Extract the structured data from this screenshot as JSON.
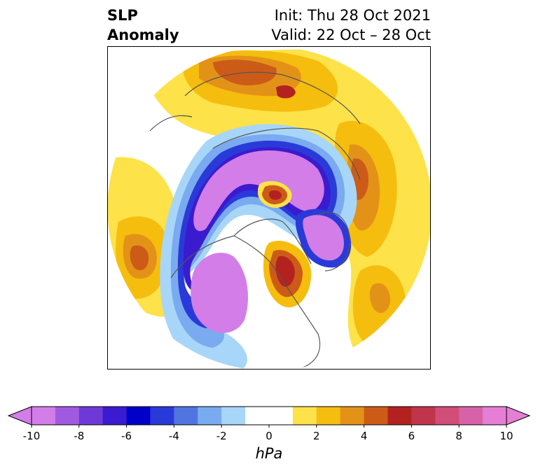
{
  "title": {
    "left_line1": "SLP",
    "left_line2": "Anomaly",
    "right_line1": "Init: Thu 28 Oct 2021",
    "right_line2": "Valid: 22 Oct – 28 Oct"
  },
  "map": {
    "projection": "north-polar-stereographic",
    "field": "sea level pressure anomaly"
  },
  "colorbar": {
    "unit": "hPa",
    "min": -10,
    "max": 10,
    "step": 1,
    "extend": "both",
    "tick_labels": [
      "-10",
      "-8",
      "-6",
      "-4",
      "-2",
      "0",
      "2",
      "4",
      "6",
      "8",
      "10"
    ],
    "colors": [
      "#d37de8",
      "#a05ae0",
      "#6f39d8",
      "#3a1bd0",
      "#0000c8",
      "#2a3ad8",
      "#5075e0",
      "#7aaaf0",
      "#a8d6f8",
      "#ffffff",
      "#ffffff",
      "#fde24a",
      "#f5bd0e",
      "#e39218",
      "#cc5b18",
      "#b42220",
      "#c0354b",
      "#d04e78",
      "#d862a8",
      "#e57ed5"
    ],
    "under_color": "#d37de8",
    "over_color": "#e57ed5"
  }
}
